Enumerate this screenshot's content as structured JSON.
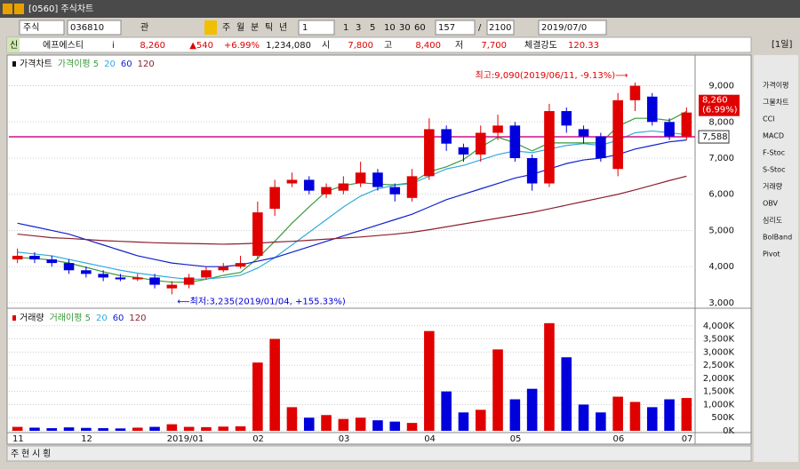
{
  "ui": {
    "window_title": "[0560] 주식차트",
    "toolbar": {
      "market": "주식",
      "code": "036810",
      "buttons": [
        "관",
        "주",
        "월",
        "분",
        "틱",
        "년"
      ],
      "unit": "1",
      "periods": [
        "1",
        "3",
        "5",
        "10",
        "30",
        "60"
      ],
      "count": "157",
      "slash": "/",
      "total": "2100",
      "date": "2019/07/0"
    },
    "info": {
      "badge": "신",
      "name": "에프에스티",
      "info_icon": "i",
      "price": "8,260",
      "change": "▲540",
      "rate": "+6.99%",
      "volume": "1,234,080",
      "open_label": "시",
      "open": "7,800",
      "high_label": "고",
      "high": "8,400",
      "low_label": "저",
      "low": "7,700",
      "strength_label": "체결강도",
      "strength": "120.33",
      "period": "[1일]"
    },
    "side_menu": [
      "가격이평",
      "그물차트",
      "CCI",
      "MACD",
      "F-Stoc",
      "S-Stoc",
      "거래량",
      "OBV",
      "심리도",
      "BolBand",
      "Pivot"
    ],
    "bottom_tabs": [
      "주",
      "현",
      "시",
      "횡"
    ]
  },
  "chart_data": [
    {
      "type": "candlestick",
      "legend": [
        "가격차트",
        "가격이평 5",
        "20",
        "60",
        "120"
      ],
      "categories": [
        "11",
        null,
        null,
        null,
        "12",
        null,
        null,
        null,
        null,
        "2019/01",
        null,
        null,
        null,
        null,
        "02",
        null,
        null,
        null,
        null,
        "03",
        null,
        null,
        null,
        null,
        "04",
        null,
        null,
        null,
        null,
        "05",
        null,
        null,
        null,
        null,
        null,
        "06",
        null,
        null,
        null,
        "07"
      ],
      "open": [
        4200,
        4300,
        4200,
        4100,
        3900,
        3800,
        3700,
        3650,
        3700,
        3400,
        3500,
        3700,
        3900,
        4000,
        4300,
        5600,
        6300,
        6400,
        6000,
        6100,
        6300,
        6600,
        6200,
        5900,
        6500,
        7800,
        7300,
        7100,
        7700,
        7900,
        7000,
        6300,
        8300,
        7800,
        7600,
        6700,
        8600,
        8700,
        8000,
        7600
      ],
      "high": [
        4500,
        4400,
        4300,
        4200,
        4000,
        3900,
        3800,
        3800,
        3800,
        3600,
        3800,
        4000,
        4100,
        4300,
        5800,
        6400,
        6600,
        6500,
        6300,
        6500,
        6900,
        6700,
        6300,
        6700,
        8100,
        7900,
        7400,
        7900,
        8200,
        8000,
        7100,
        8500,
        8400,
        7900,
        7700,
        8800,
        9090,
        8800,
        8100,
        8400
      ],
      "low": [
        4100,
        4100,
        4000,
        3800,
        3700,
        3600,
        3600,
        3600,
        3400,
        3235,
        3400,
        3650,
        3850,
        3950,
        4200,
        5400,
        6200,
        6000,
        5900,
        6000,
        6200,
        6100,
        5800,
        5800,
        6400,
        7200,
        6900,
        6900,
        7500,
        6900,
        6100,
        6200,
        7700,
        7400,
        6900,
        6500,
        8300,
        7900,
        7500,
        7500
      ],
      "close": [
        4300,
        4200,
        4100,
        3900,
        3800,
        3700,
        3650,
        3700,
        3500,
        3500,
        3700,
        3900,
        4000,
        4100,
        5500,
        6200,
        6400,
        6100,
        6200,
        6300,
        6600,
        6200,
        6000,
        6500,
        7800,
        7400,
        7100,
        7700,
        7900,
        7000,
        6300,
        8300,
        7900,
        7600,
        7000,
        8600,
        9000,
        8000,
        7600,
        8260
      ],
      "up_color": "#e00000",
      "down_color": "#0000dd",
      "series": [
        {
          "color": "#3a9a3a",
          "values": [
            4250,
            4230,
            4180,
            4100,
            3980,
            3860,
            3750,
            3700,
            3620,
            3570,
            3570,
            3650,
            3760,
            3840,
            4230,
            4700,
            5200,
            5650,
            6080,
            6240,
            6320,
            6280,
            6260,
            6320,
            6620,
            6760,
            6960,
            7300,
            7580,
            7420,
            7200,
            7420,
            7420,
            7420,
            7420,
            7880,
            8100,
            8100,
            8040,
            8290
          ]
        },
        {
          "color": "#33aadd",
          "values": [
            4400,
            4350,
            4300,
            4200,
            4100,
            4000,
            3900,
            3820,
            3760,
            3700,
            3650,
            3660,
            3700,
            3760,
            3960,
            4250,
            4600,
            4950,
            5300,
            5650,
            5950,
            6150,
            6250,
            6300,
            6500,
            6700,
            6800,
            6950,
            7100,
            7200,
            7150,
            7250,
            7350,
            7400,
            7350,
            7500,
            7700,
            7750,
            7700,
            7650
          ]
        },
        {
          "color": "#1020d0",
          "values": [
            5200,
            5100,
            5000,
            4900,
            4750,
            4600,
            4450,
            4300,
            4200,
            4100,
            4050,
            4000,
            4000,
            4050,
            4150,
            4250,
            4400,
            4550,
            4700,
            4850,
            5000,
            5150,
            5300,
            5450,
            5650,
            5850,
            6000,
            6150,
            6300,
            6450,
            6550,
            6700,
            6850,
            6950,
            7000,
            7100,
            7250,
            7350,
            7450,
            7500
          ]
        },
        {
          "color": "#8b2030",
          "values": [
            4900,
            4850,
            4800,
            4780,
            4750,
            4720,
            4700,
            4680,
            4660,
            4650,
            4640,
            4630,
            4620,
            4630,
            4650,
            4680,
            4700,
            4730,
            4760,
            4790,
            4820,
            4860,
            4900,
            4950,
            5020,
            5100,
            5180,
            5260,
            5340,
            5420,
            5500,
            5600,
            5700,
            5800,
            5900,
            6000,
            6120,
            6250,
            6380,
            6500
          ]
        }
      ],
      "hline": {
        "value": 7588,
        "label": "7,588",
        "color": "#d0108a"
      },
      "high_note": "최고:9,090(2019/06/11, -9.13%)⟶",
      "low_note": "⟵최저:3,235(2019/01/04, +155.33%)",
      "last_tag": [
        "8,260",
        "(6.99%)"
      ],
      "ylim": [
        2900,
        9750
      ],
      "yticks": [
        {
          "value": 3000,
          "label": "3,000"
        },
        {
          "value": 4000,
          "label": "4,000"
        },
        {
          "value": 5000,
          "label": "5,000"
        },
        {
          "value": 6000,
          "label": "6,000"
        },
        {
          "value": 7000,
          "label": "7,000"
        },
        {
          "value": 8000,
          "label": "8,000"
        },
        {
          "value": 9000,
          "label": "9,000"
        }
      ]
    },
    {
      "type": "bar",
      "legend": [
        "거래량",
        "거래이평 5",
        "20",
        "60",
        "120"
      ],
      "values": [
        150,
        120,
        100,
        130,
        110,
        100,
        90,
        120,
        150,
        250,
        150,
        140,
        160,
        170,
        2600,
        3500,
        900,
        500,
        600,
        450,
        500,
        400,
        350,
        300,
        3800,
        1500,
        700,
        800,
        3100,
        1200,
        1600,
        4100,
        2800,
        1000,
        700,
        1300,
        1100,
        900,
        1200,
        1250
      ],
      "ylim": [
        0,
        4500
      ],
      "yticks": [
        {
          "value": 0,
          "label": "0K"
        },
        {
          "value": 500,
          "label": "500K"
        },
        {
          "value": 1000,
          "label": "1,000K"
        },
        {
          "value": 1500,
          "label": "1,500K"
        },
        {
          "value": 2000,
          "label": "2,000K"
        },
        {
          "value": 2500,
          "label": "2,500K"
        },
        {
          "value": 3000,
          "label": "3,000K"
        },
        {
          "value": 3500,
          "label": "3,500K"
        },
        {
          "value": 4000,
          "label": "4,000K"
        }
      ]
    }
  ]
}
